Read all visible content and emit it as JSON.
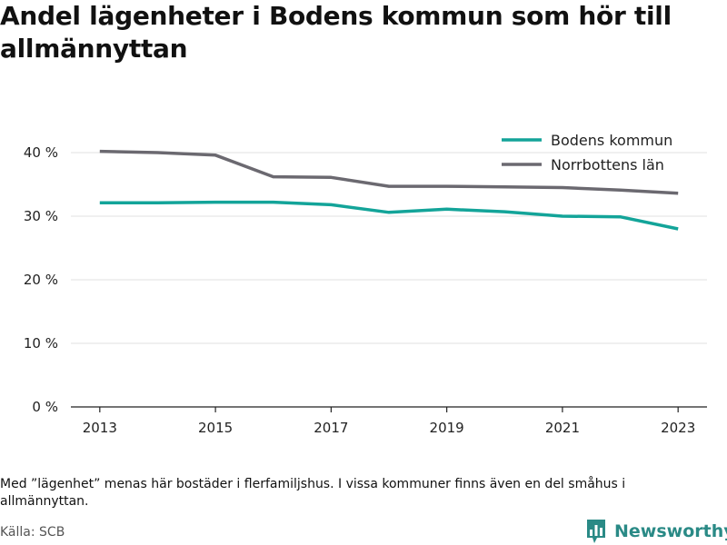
{
  "title": "Andel lägenheter i Bodens kommun som hör till allmännyttan",
  "note": "Med ”lägenhet” menas här bostäder i flerfamiljshus. I vissa kommuner finns även en del småhus i allmännyttan.",
  "source": "Källa: SCB",
  "brand": {
    "name": "Newsworthy",
    "color": "#2a8a86",
    "icon": "bar-chart-logo-icon"
  },
  "chart_data": {
    "type": "line",
    "x": [
      2013,
      2014,
      2015,
      2016,
      2017,
      2018,
      2019,
      2020,
      2021,
      2022,
      2023
    ],
    "x_ticks": [
      2013,
      2015,
      2017,
      2019,
      2021,
      2023
    ],
    "x_tick_labels": [
      "2013",
      "2015",
      "2017",
      "2019",
      "2021",
      "2023"
    ],
    "xlim": [
      2012.5,
      2023.5
    ],
    "ylim": [
      0,
      45
    ],
    "y_ticks": [
      0,
      10,
      20,
      30,
      40
    ],
    "y_tick_labels": [
      "0 %",
      "10 %",
      "20 %",
      "30 %",
      "40 %"
    ],
    "grid": true,
    "legend_position": "top-right",
    "series": [
      {
        "name": "Bodens kommun",
        "color": "#13a499",
        "values": [
          32.1,
          32.1,
          32.2,
          32.2,
          31.8,
          30.6,
          31.1,
          30.7,
          30.0,
          29.9,
          28.0
        ]
      },
      {
        "name": "Norrbottens län",
        "color": "#6b6970",
        "values": [
          40.2,
          40.0,
          39.6,
          36.2,
          36.1,
          34.7,
          34.7,
          34.6,
          34.5,
          34.1,
          33.6
        ]
      }
    ]
  }
}
